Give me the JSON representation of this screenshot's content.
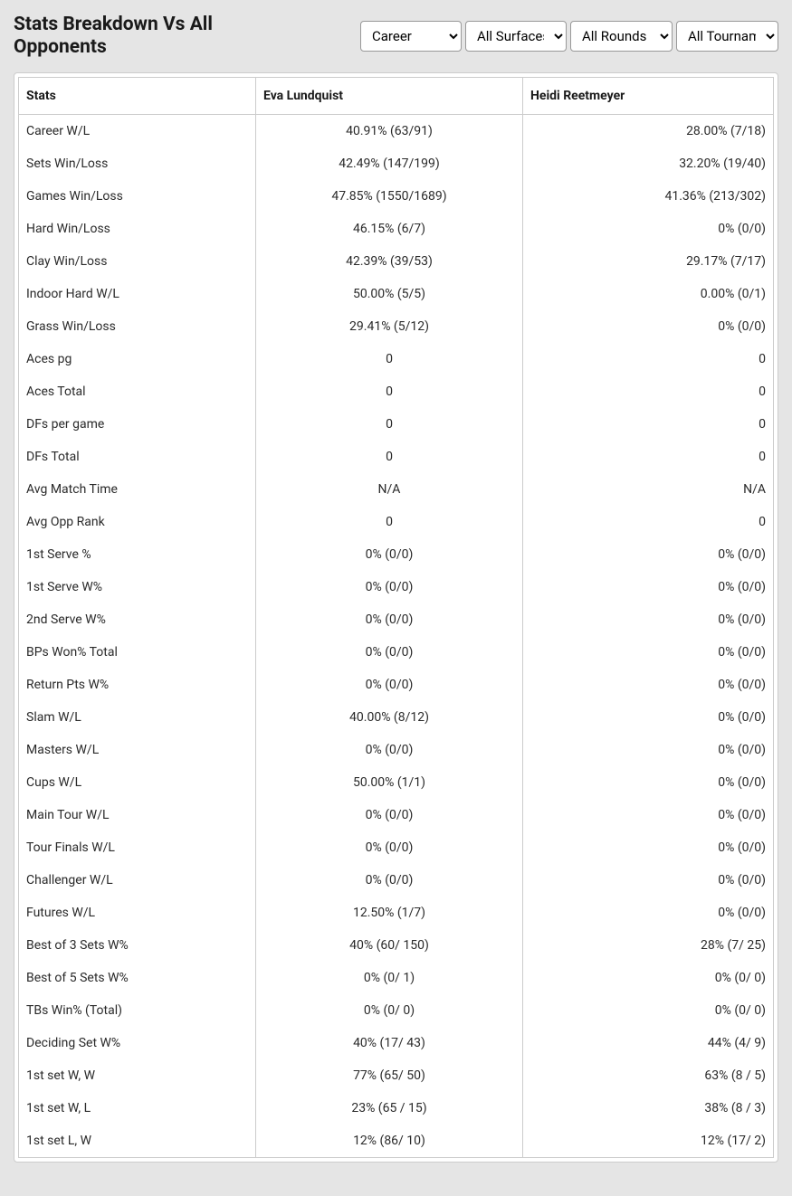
{
  "title": "Stats Breakdown Vs All Opponents",
  "filters": {
    "career": {
      "selected": "Career",
      "options": [
        "Career"
      ]
    },
    "surface": {
      "selected": "All Surfaces",
      "options": [
        "All Surfaces"
      ]
    },
    "rounds": {
      "selected": "All Rounds",
      "options": [
        "All Rounds"
      ]
    },
    "tournaments": {
      "selected": "All Tournaments",
      "options": [
        "All Tournaments"
      ]
    }
  },
  "columns": {
    "stat": "Stats",
    "p1": "Eva Lundquist",
    "p2": "Heidi Reetmeyer"
  },
  "rows": [
    {
      "stat": "Career W/L",
      "p1": "40.91% (63/91)",
      "p2": "28.00% (7/18)"
    },
    {
      "stat": "Sets Win/Loss",
      "p1": "42.49% (147/199)",
      "p2": "32.20% (19/40)"
    },
    {
      "stat": "Games Win/Loss",
      "p1": "47.85% (1550/1689)",
      "p2": "41.36% (213/302)"
    },
    {
      "stat": "Hard Win/Loss",
      "p1": "46.15% (6/7)",
      "p2": "0% (0/0)"
    },
    {
      "stat": "Clay Win/Loss",
      "p1": "42.39% (39/53)",
      "p2": "29.17% (7/17)"
    },
    {
      "stat": "Indoor Hard W/L",
      "p1": "50.00% (5/5)",
      "p2": "0.00% (0/1)"
    },
    {
      "stat": "Grass Win/Loss",
      "p1": "29.41% (5/12)",
      "p2": "0% (0/0)"
    },
    {
      "stat": "Aces pg",
      "p1": "0",
      "p2": "0"
    },
    {
      "stat": "Aces Total",
      "p1": "0",
      "p2": "0"
    },
    {
      "stat": "DFs per game",
      "p1": "0",
      "p2": "0"
    },
    {
      "stat": "DFs Total",
      "p1": "0",
      "p2": "0"
    },
    {
      "stat": "Avg Match Time",
      "p1": "N/A",
      "p2": "N/A"
    },
    {
      "stat": "Avg Opp Rank",
      "p1": "0",
      "p2": "0"
    },
    {
      "stat": "1st Serve %",
      "p1": "0% (0/0)",
      "p2": "0% (0/0)"
    },
    {
      "stat": "1st Serve W%",
      "p1": "0% (0/0)",
      "p2": "0% (0/0)"
    },
    {
      "stat": "2nd Serve W%",
      "p1": "0% (0/0)",
      "p2": "0% (0/0)"
    },
    {
      "stat": "BPs Won% Total",
      "p1": "0% (0/0)",
      "p2": "0% (0/0)"
    },
    {
      "stat": "Return Pts W%",
      "p1": "0% (0/0)",
      "p2": "0% (0/0)"
    },
    {
      "stat": "Slam W/L",
      "p1": "40.00% (8/12)",
      "p2": "0% (0/0)"
    },
    {
      "stat": "Masters W/L",
      "p1": "0% (0/0)",
      "p2": "0% (0/0)"
    },
    {
      "stat": "Cups W/L",
      "p1": "50.00% (1/1)",
      "p2": "0% (0/0)"
    },
    {
      "stat": "Main Tour W/L",
      "p1": "0% (0/0)",
      "p2": "0% (0/0)"
    },
    {
      "stat": "Tour Finals W/L",
      "p1": "0% (0/0)",
      "p2": "0% (0/0)"
    },
    {
      "stat": "Challenger W/L",
      "p1": "0% (0/0)",
      "p2": "0% (0/0)"
    },
    {
      "stat": "Futures W/L",
      "p1": "12.50% (1/7)",
      "p2": "0% (0/0)"
    },
    {
      "stat": "Best of 3 Sets W%",
      "p1": "40% (60/ 150)",
      "p2": "28% (7/ 25)"
    },
    {
      "stat": "Best of 5 Sets W%",
      "p1": "0% (0/ 1)",
      "p2": "0% (0/ 0)"
    },
    {
      "stat": "TBs Win% (Total)",
      "p1": "0% (0/ 0)",
      "p2": "0% (0/ 0)"
    },
    {
      "stat": "Deciding Set W%",
      "p1": "40% (17/ 43)",
      "p2": "44% (4/ 9)"
    },
    {
      "stat": "1st set W, W",
      "p1": "77% (65/ 50)",
      "p2": "63% (8 / 5)"
    },
    {
      "stat": "1st set W, L",
      "p1": "23% (65 / 15)",
      "p2": "38% (8 / 3)"
    },
    {
      "stat": "1st set L, W",
      "p1": "12% (86/ 10)",
      "p2": "12% (17/ 2)"
    }
  ],
  "styling": {
    "background_color": "#e5e5e5",
    "table_bg": "#ffffff",
    "border_color": "#cccccc",
    "text_color": "#1a1a1a",
    "body_text_color": "#2a2a2a",
    "title_fontsize": 21,
    "cell_fontsize": 14,
    "col_widths": {
      "stat": 262,
      "p1": 295
    },
    "col_align": {
      "stat": "left",
      "p1": "center",
      "p2": "right"
    }
  }
}
